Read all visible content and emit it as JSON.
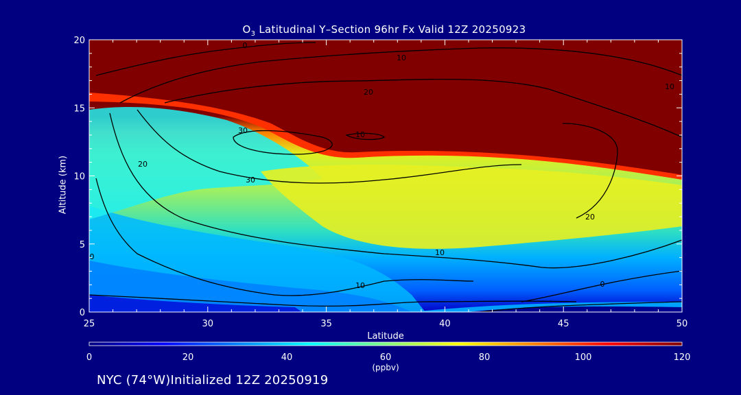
{
  "chart_data": {
    "type": "contour",
    "title": "O3 Latitudinal Y-Section 96hr  Fx Valid 12Z 20250923",
    "title_parts": {
      "pre": "O",
      "sub": "3",
      "post": " Latitudinal Y–Section 96hr  Fx Valid 12Z 20250923"
    },
    "xlabel": "Latitude",
    "ylabel": "Altitude (km)",
    "xlim": [
      25,
      50
    ],
    "ylim": [
      0,
      20
    ],
    "xticks": [
      "25",
      "30",
      "35",
      "40",
      "45",
      "50"
    ],
    "yticks": [
      "0",
      "5",
      "10",
      "15",
      "20"
    ],
    "filled_variable": "ozone",
    "colorbar": {
      "range": [
        0,
        120
      ],
      "ticks": [
        "0",
        "20",
        "40",
        "60",
        "80",
        "100",
        "120"
      ],
      "unit": "(ppbv)",
      "colors": [
        "#000080",
        "#0000ff",
        "#0080ff",
        "#00ffff",
        "#80ff80",
        "#ffff00",
        "#ff8000",
        "#ff0000",
        "#800000"
      ]
    },
    "contour_labels": [
      "0",
      "10",
      "20",
      "30",
      "10",
      "20",
      "30",
      "10",
      "20",
      "10",
      "0",
      "10",
      "0"
    ],
    "contour_levels": [
      0,
      10,
      20,
      30
    ]
  },
  "footer": "NYC (74°W)Initialized 12Z 20250919"
}
